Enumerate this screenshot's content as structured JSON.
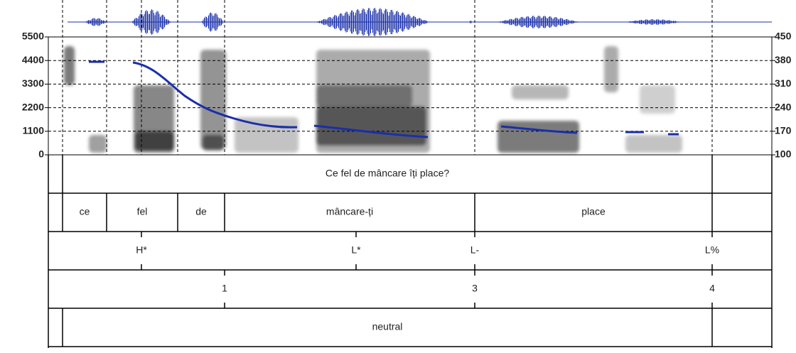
{
  "left_axis": {
    "lim": [
      0,
      5500
    ],
    "ticks": [
      0,
      1100,
      2200,
      3300,
      4400,
      5500
    ]
  },
  "right_axis": {
    "lim": [
      100,
      450
    ],
    "ticks": [
      100,
      170,
      240,
      310,
      380,
      450
    ]
  },
  "tiers": [
    {
      "labels": [
        "Ce fel de mâncare îți place?"
      ]
    },
    {
      "labels": [
        "ce",
        "fel",
        "de",
        "mâncare-ți",
        "place"
      ]
    },
    {
      "labels": [
        "H*",
        "L*",
        "L-",
        "L%"
      ]
    },
    {
      "labels": [
        "1",
        "3",
        "4"
      ]
    },
    {
      "labels": [
        "neutral"
      ]
    }
  ]
}
